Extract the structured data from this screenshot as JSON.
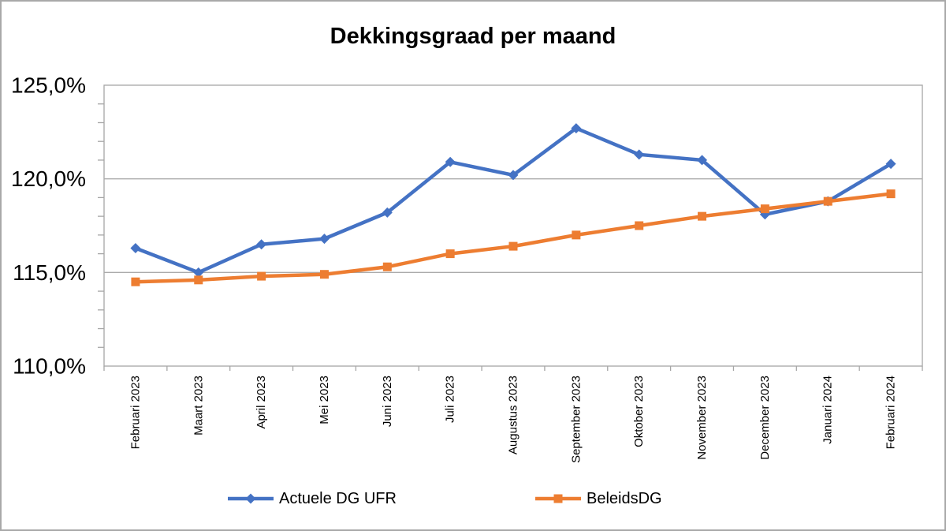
{
  "chart_data": {
    "type": "line",
    "title": "Dekkingsgraad per maand",
    "categories": [
      "Februari 2023",
      "Maart 2023",
      "April 2023",
      "Mei 2023",
      "Juni 2023",
      "Juli 2023",
      "Augustus 2023",
      "September 2023",
      "Oktober 2023",
      "November 2023",
      "December 2023",
      "Januari 2024",
      "Februari 2024"
    ],
    "series": [
      {
        "name": "Actuele DG UFR",
        "color": "#4472C4",
        "marker": "diamond",
        "values": [
          116.3,
          115.0,
          116.5,
          116.8,
          118.2,
          120.9,
          120.2,
          122.7,
          121.3,
          121.0,
          118.1,
          118.8,
          120.8
        ]
      },
      {
        "name": "BeleidsDG",
        "color": "#ED7D31",
        "marker": "square",
        "values": [
          114.5,
          114.6,
          114.8,
          114.9,
          115.3,
          116.0,
          116.4,
          117.0,
          117.5,
          118.0,
          118.4,
          118.8,
          119.2
        ]
      }
    ],
    "y_axis": {
      "min": 110,
      "max": 125,
      "major_step": 5,
      "minor_step": 1,
      "tick_labels": [
        "110,0%",
        "115,0%",
        "120,0%",
        "125,0%"
      ],
      "unit": "percent-comma-decimal"
    },
    "x_axis": {
      "label_rotation_degrees": 90
    },
    "grid": "horizontal-major",
    "legend_position": "bottom",
    "colors": {
      "axis_line": "#a6a6a6",
      "gridline": "#ababab",
      "text": "#000000",
      "background": "#ffffff",
      "frame_border": "#a9a9a9"
    }
  }
}
